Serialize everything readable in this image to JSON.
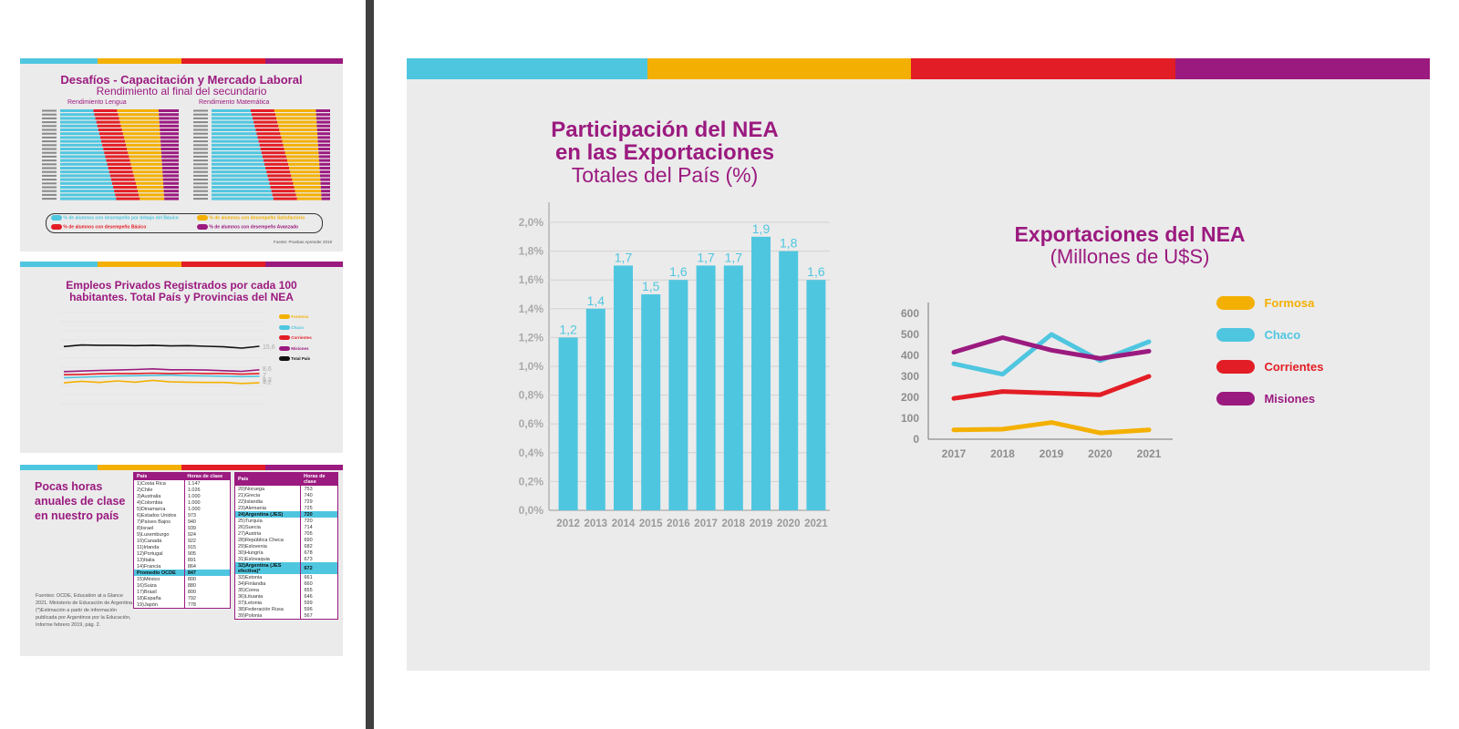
{
  "colors": {
    "cyan": "#4fc6e0",
    "yellow": "#f4b002",
    "red": "#e31d25",
    "purple": "#9b1a7f",
    "black": "#111111"
  },
  "thumb1": {
    "title": "Desafíos - Capacitación y Mercado Laboral",
    "subtitle": "Rendimiento al final del secundario",
    "left_label": "Rendimiento Lengua",
    "right_label": "Rendimiento Matemática",
    "legend": [
      {
        "label": "% de alumnos con desempeño por debajo del Básico",
        "color": "#4fc6e0"
      },
      {
        "label": "% de alumnos con desempeño Satisfactorio",
        "color": "#f4b002"
      },
      {
        "label": "% de alumnos con desempeño Básico",
        "color": "#e31d25"
      },
      {
        "label": "% de alumnos con desempeño Avanzado",
        "color": "#9b1a7f"
      }
    ],
    "source": "Fuente: Pruebas Aprender 2019"
  },
  "thumb2": {
    "title_line1": "Empleos Privados Registrados por cada 100",
    "title_line2": "habitantes. Total País y Provincias del NEA",
    "legend": [
      {
        "label": "Formosa",
        "color": "#f4b002"
      },
      {
        "label": "Chaco",
        "color": "#4fc6e0"
      },
      {
        "label": "Corrientes",
        "color": "#e31d25"
      },
      {
        "label": "Misiones",
        "color": "#9b1a7f"
      },
      {
        "label": "Total País",
        "color": "#111111"
      }
    ],
    "end_labels": [
      "15,6",
      "8,6",
      "7",
      "6,2",
      "4,2"
    ]
  },
  "thumb3": {
    "heading": "Pocas horas anuales de clase en nuestro país",
    "source": "Fuentes: OCDE, Education at a Glance 2021. Ministerio de Educación de Argentina. (*)Estimación a partir de información publicada por Argentinos por la Educación, Informe febrero 2019, pág. 2.",
    "col_country": "País",
    "col_hours": "Horas de clase",
    "table_left": [
      [
        "1)Costa Rica",
        "1.147"
      ],
      [
        "2)Chile",
        "1.026"
      ],
      [
        "3)Australia",
        "1.000"
      ],
      [
        "4)Colombia",
        "1.000"
      ],
      [
        "5)Dinamarca",
        "1.000"
      ],
      [
        "6)Estados Unidos",
        "973"
      ],
      [
        "7)Países Bajos",
        "940"
      ],
      [
        "8)Israel",
        "939"
      ],
      [
        "9)Luxemburgo",
        "924"
      ],
      [
        "10)Canadá",
        "922"
      ],
      [
        "11)Irlanda",
        "915"
      ],
      [
        "12)Portugal",
        "905"
      ],
      [
        "13)Italia",
        "891"
      ],
      [
        "14)Francia",
        "864"
      ],
      [
        "Promedio OCDE",
        "847"
      ],
      [
        "15)México",
        "800"
      ],
      [
        "16)Suiza",
        "880"
      ],
      [
        "17)Brasil",
        "800"
      ],
      [
        "18)España",
        "792"
      ],
      [
        "19)Japón",
        "778"
      ]
    ],
    "table_right": [
      [
        "20)Noruega",
        "753"
      ],
      [
        "21)Grecia",
        "740"
      ],
      [
        "22)Islandia",
        "729"
      ],
      [
        "23)Alemania",
        "725"
      ],
      [
        "24)Argentina (JES)",
        "720"
      ],
      [
        "25)Turquía",
        "720"
      ],
      [
        "26)Suecia",
        "714"
      ],
      [
        "27)Austria",
        "705"
      ],
      [
        "28)República Checa",
        "690"
      ],
      [
        "29)Eslovenia",
        "682"
      ],
      [
        "30)Hungría",
        "678"
      ],
      [
        "31)Eslovaquia",
        "673"
      ],
      [
        "32)Argentina (JES efectiva)*",
        "672"
      ],
      [
        "33)Estonia",
        "661"
      ],
      [
        "34)Finlandia",
        "660"
      ],
      [
        "35)Corea",
        "655"
      ],
      [
        "36)Lituania",
        "646"
      ],
      [
        "37)Letonia",
        "599"
      ],
      [
        "38)Federación Rusa",
        "596"
      ],
      [
        "39)Polonia",
        "567"
      ]
    ]
  },
  "main": {
    "left_title_line1": "Participación del NEA",
    "left_title_line2": "en las Exportaciones",
    "left_title_line3": "Totales del País (%)",
    "right_title_line1": "Exportaciones del NEA",
    "right_title_line2": "(Millones de U$S)"
  },
  "chart_data": [
    {
      "type": "bar",
      "categories": [
        "2012",
        "2013",
        "2014",
        "2015",
        "2016",
        "2017",
        "2018",
        "2019",
        "2020",
        "2021"
      ],
      "values": [
        1.2,
        1.4,
        1.7,
        1.5,
        1.6,
        1.7,
        1.7,
        1.9,
        1.8,
        1.6
      ],
      "value_labels": [
        "1,2",
        "1,4",
        "1,7",
        "1,5",
        "1,6",
        "1,7",
        "1,7",
        "1,9",
        "1,8",
        "1,6"
      ],
      "yticks": [
        "0,0%",
        "0,2%",
        "0,4%",
        "0,6%",
        "0,8%",
        "1,0%",
        "1,2%",
        "1,4%",
        "1,6%",
        "1,8%",
        "2,0%"
      ],
      "ylim": [
        0,
        2.0
      ],
      "grid": true,
      "color": "#4fc6e0"
    },
    {
      "type": "line",
      "x": [
        "2017",
        "2018",
        "2019",
        "2020",
        "2021"
      ],
      "yticks": [
        "0",
        "100",
        "200",
        "300",
        "400",
        "500",
        "600"
      ],
      "ylim": [
        0,
        600
      ],
      "legend_position": "right",
      "series": [
        {
          "name": "Formosa",
          "color": "#f4b002",
          "values": [
            45,
            48,
            80,
            30,
            45
          ]
        },
        {
          "name": "Chaco",
          "color": "#4fc6e0",
          "values": [
            360,
            310,
            500,
            375,
            465
          ]
        },
        {
          "name": "Corrientes",
          "color": "#e31d25",
          "values": [
            195,
            228,
            220,
            212,
            300
          ]
        },
        {
          "name": "Misiones",
          "color": "#9b1a7f",
          "values": [
            415,
            485,
            425,
            385,
            420
          ]
        }
      ]
    }
  ]
}
